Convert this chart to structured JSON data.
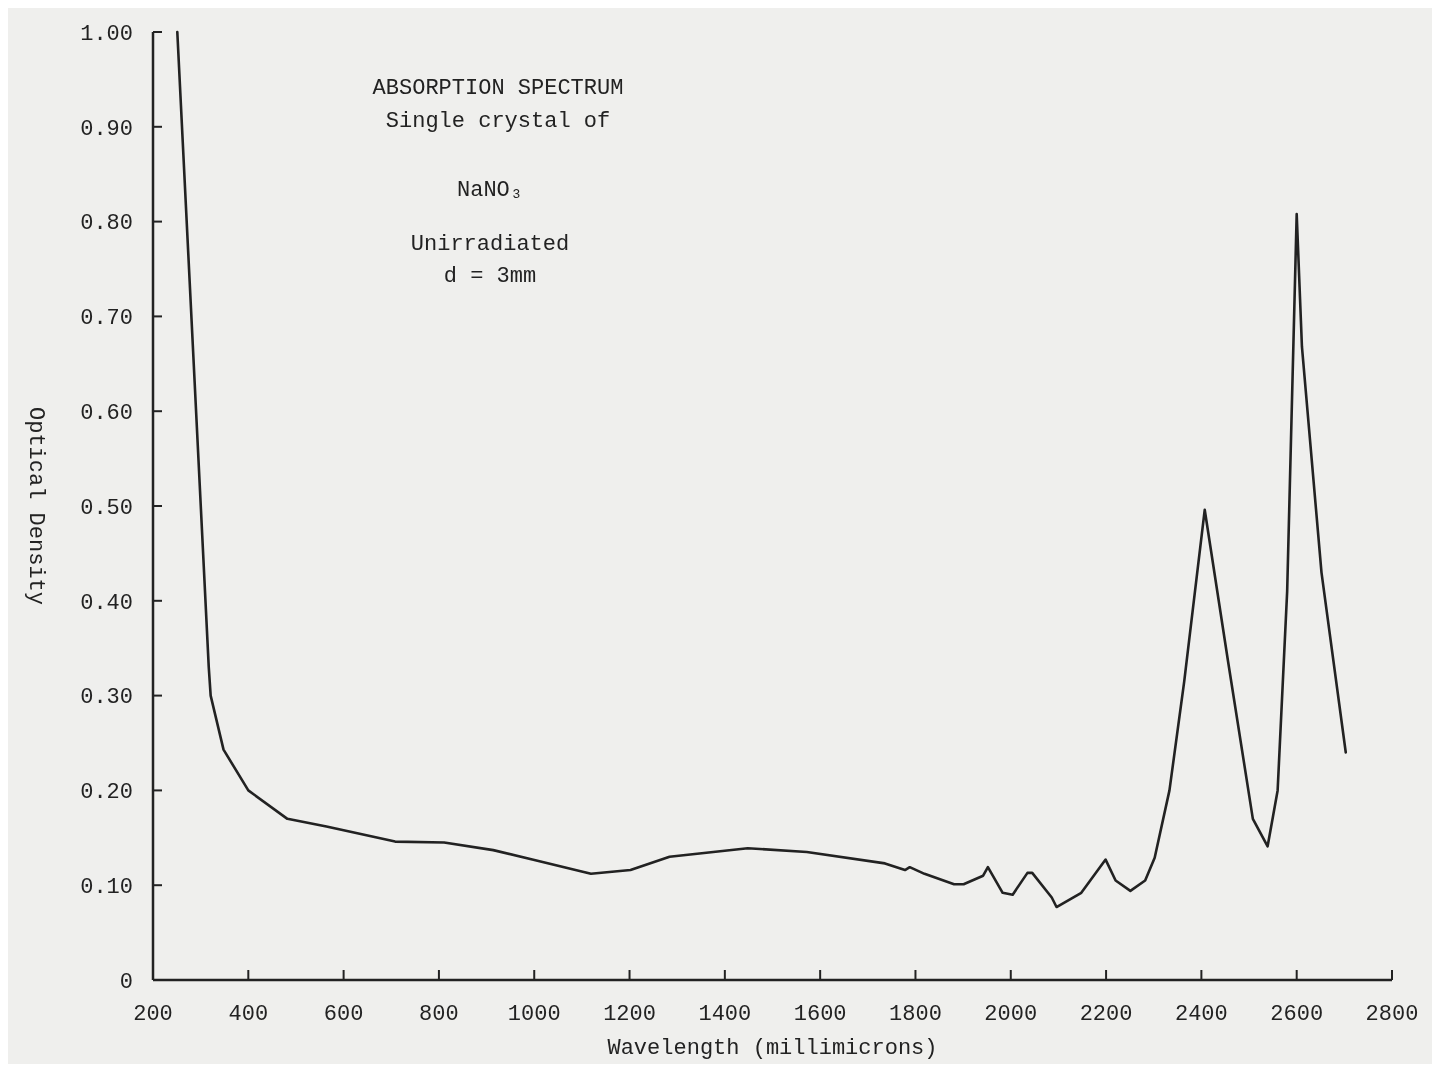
{
  "chart_data": {
    "type": "line",
    "title": "ABSORPTION SPECTRUM",
    "subtitle": "Single crystal of",
    "annotations": [
      "NaNO₃",
      "Unirradiated",
      "d = 3mm"
    ],
    "xlabel": "Wavelength (millimicrons)",
    "ylabel": "Optical Density",
    "xlim": [
      200,
      2800
    ],
    "ylim": [
      0,
      1
    ],
    "xticks": [
      200,
      400,
      600,
      800,
      1000,
      1200,
      1400,
      1600,
      1800,
      2000,
      2200,
      2400,
      2600,
      2800
    ],
    "yticks": [
      0,
      {
        "value": 0.1,
        "label": "0.10"
      },
      {
        "value": 0.2,
        "label": "0.20"
      },
      {
        "value": 0.3,
        "label": "0.30"
      },
      {
        "value": 0.4,
        "label": "0.40"
      },
      {
        "value": 0.5,
        "label": "0.50"
      },
      {
        "value": 0.6,
        "label": "0.60"
      },
      {
        "value": 0.7,
        "label": "0.70"
      },
      {
        "value": 0.8,
        "label": "0.80"
      },
      {
        "value": 0.9,
        "label": "0.90"
      },
      {
        "value": 1,
        "label": "1.00"
      }
    ],
    "grid": false,
    "marker": "none",
    "line_style": "solid",
    "x": [
      251,
      317,
      321,
      348,
      400,
      482,
      564,
      708,
      811,
      914,
      996,
      1119,
      1202,
      1284,
      1448,
      1572,
      1736,
      1778,
      1788,
      1819,
      1881,
      1901,
      1942,
      1952,
      1983,
      2004,
      2035,
      2045,
      2086,
      2096,
      2148,
      2199,
      2220,
      2251,
      2282,
      2302,
      2333,
      2364,
      2407,
      2456,
      2508,
      2539,
      2560,
      2580,
      2600,
      2611,
      2652,
      2703
    ],
    "series": [
      {
        "color": "#222222",
        "values": [
          1.0,
          0.33,
          0.3,
          0.243,
          0.2,
          0.17,
          0.162,
          0.146,
          0.145,
          0.137,
          0.127,
          0.112,
          0.116,
          0.13,
          0.139,
          0.135,
          0.123,
          0.116,
          0.119,
          0.112,
          0.101,
          0.101,
          0.11,
          0.119,
          0.092,
          0.09,
          0.113,
          0.113,
          0.087,
          0.077,
          0.092,
          0.127,
          0.105,
          0.094,
          0.105,
          0.129,
          0.2,
          0.315,
          0.496,
          0.336,
          0.17,
          0.141,
          0.2,
          0.41,
          0.808,
          0.668,
          0.43,
          0.24
        ]
      }
    ]
  }
}
